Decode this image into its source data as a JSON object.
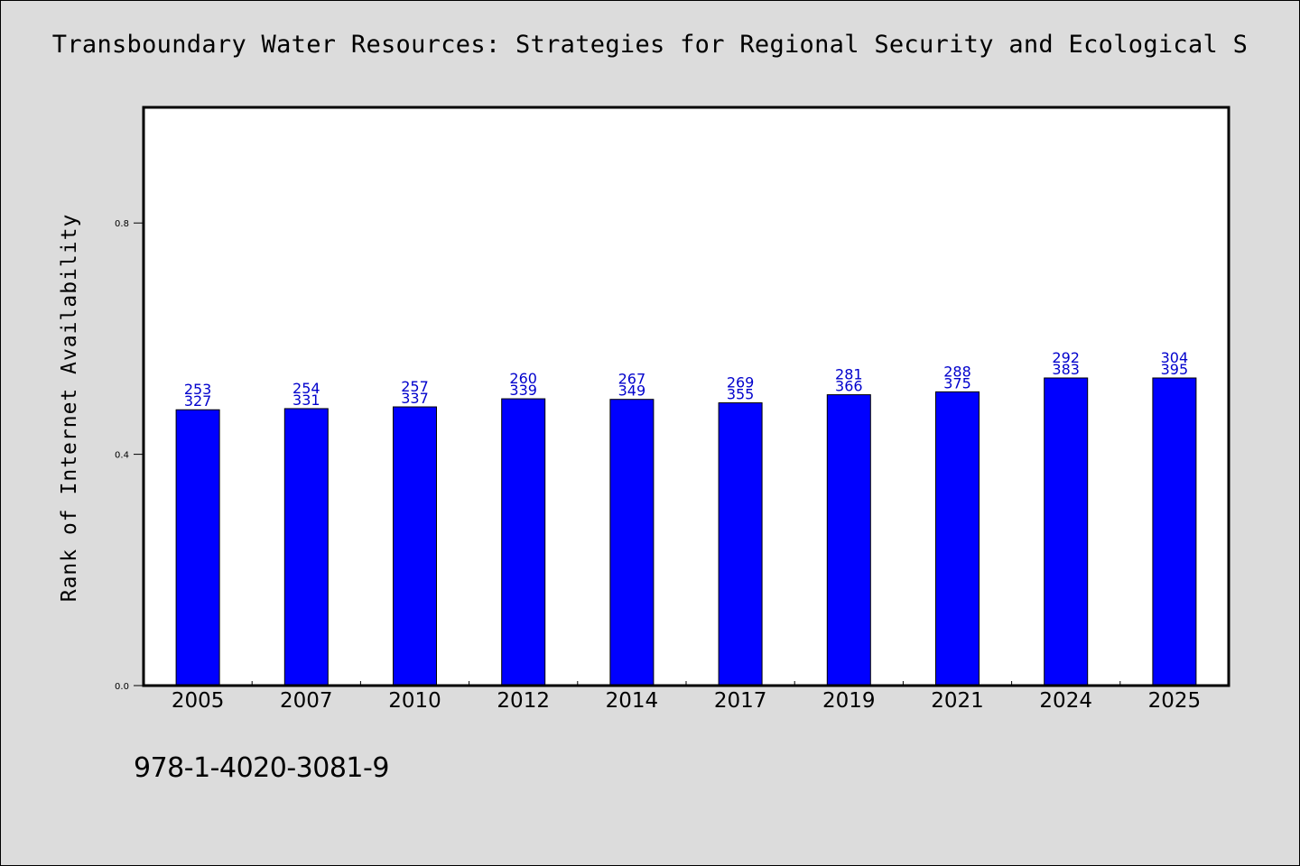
{
  "chart_data": {
    "type": "bar",
    "title": "Transboundary Water Resources: Strategies for Regional Security and Ecological S",
    "xlabel": "",
    "ylabel": "Rank of Internet Availability",
    "categories": [
      "2005",
      "2007",
      "2010",
      "2012",
      "2014",
      "2017",
      "2019",
      "2021",
      "2024",
      "2025"
    ],
    "values": [
      0.477,
      0.479,
      0.482,
      0.496,
      0.495,
      0.489,
      0.503,
      0.508,
      0.532,
      0.532
    ],
    "data_labels": [
      [
        "253",
        "327"
      ],
      [
        "254",
        "331"
      ],
      [
        "257",
        "337"
      ],
      [
        "260",
        "339"
      ],
      [
        "267",
        "349"
      ],
      [
        "269",
        "355"
      ],
      [
        "281",
        "366"
      ],
      [
        "288",
        "375"
      ],
      [
        "292",
        "383"
      ],
      [
        "304",
        "395"
      ]
    ],
    "yticks": [
      "0.0",
      "0.4",
      "0.8"
    ],
    "ytick_values": [
      0.0,
      0.4,
      0.8
    ],
    "ylim": [
      0,
      1.0
    ],
    "grid": false,
    "legend": "none",
    "bar_color": "#0000ff",
    "label_color": "#0000cc"
  },
  "footer": {
    "isbn": "978-1-4020-3081-9"
  }
}
